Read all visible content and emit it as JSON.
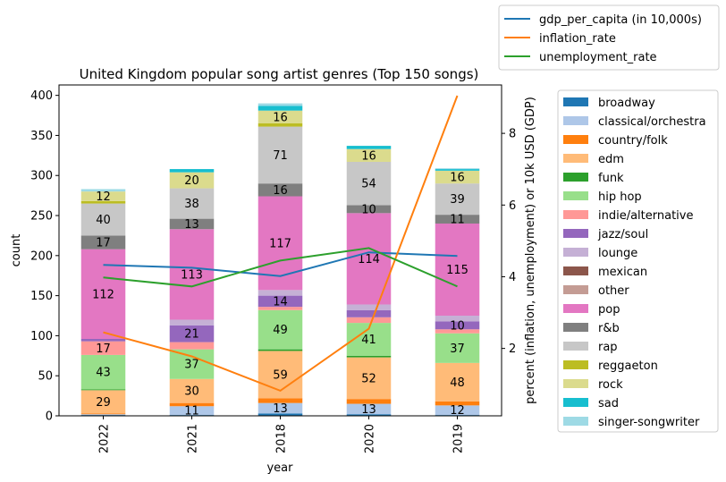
{
  "chart_data": {
    "type": "bar",
    "stacked": true,
    "title": "United Kingdom popular song artist genres (Top 150 songs)",
    "xlabel": "year",
    "ylabel": "count",
    "y2label": "percent (inflation, unemployment) or 10k USD (GDP)",
    "categories": [
      "2022",
      "2021",
      "2018",
      "2020",
      "2019"
    ],
    "ylim": [
      0,
      413
    ],
    "y2lim": [
      0.12,
      9.35
    ],
    "yticks": [
      0,
      50,
      100,
      150,
      200,
      250,
      300,
      350,
      400
    ],
    "y2ticks": [
      2,
      4,
      6,
      8
    ],
    "series": [
      {
        "name": "broadway",
        "color": "#1f77b4",
        "values": [
          1,
          1,
          3,
          2,
          1
        ]
      },
      {
        "name": "classical/orchestra",
        "color": "#aec7e8",
        "values": [
          1,
          11,
          13,
          13,
          12
        ]
      },
      {
        "name": "country/folk",
        "color": "#ff7f0e",
        "values": [
          1,
          4,
          6,
          6,
          5
        ]
      },
      {
        "name": "edm",
        "color": "#ffbb78",
        "values": [
          29,
          30,
          59,
          52,
          48
        ]
      },
      {
        "name": "funk",
        "color": "#2ca02c",
        "values": [
          1,
          0,
          2,
          2,
          0
        ]
      },
      {
        "name": "hip hop",
        "color": "#98df8a",
        "values": [
          43,
          37,
          49,
          41,
          37
        ]
      },
      {
        "name": "indie/alternative",
        "color": "#ff9896",
        "values": [
          17,
          9,
          4,
          7,
          5
        ]
      },
      {
        "name": "jazz/soul",
        "color": "#9467bd",
        "values": [
          3,
          21,
          14,
          9,
          10
        ]
      },
      {
        "name": "lounge",
        "color": "#c5b0d5",
        "values": [
          0,
          7,
          7,
          7,
          7
        ]
      },
      {
        "name": "mexican",
        "color": "#8c564b",
        "values": [
          0,
          0,
          0,
          0,
          0
        ]
      },
      {
        "name": "other",
        "color": "#c49c94",
        "values": [
          0,
          0,
          0,
          0,
          0
        ]
      },
      {
        "name": "pop",
        "color": "#e377c2",
        "values": [
          112,
          113,
          117,
          114,
          115
        ]
      },
      {
        "name": "r&b",
        "color": "#7f7f7f",
        "values": [
          17,
          13,
          16,
          10,
          11
        ]
      },
      {
        "name": "rap",
        "color": "#c7c7c7",
        "values": [
          40,
          38,
          71,
          54,
          39
        ]
      },
      {
        "name": "reggaeton",
        "color": "#bcbd22",
        "values": [
          3,
          0,
          4,
          0,
          0
        ]
      },
      {
        "name": "rock",
        "color": "#dbdb8d",
        "values": [
          12,
          20,
          16,
          16,
          16
        ]
      },
      {
        "name": "sad",
        "color": "#17becf",
        "values": [
          0,
          4,
          6,
          4,
          2
        ]
      },
      {
        "name": "singer-songwriter",
        "color": "#9edae5",
        "values": [
          3,
          0,
          3,
          0,
          1
        ]
      }
    ],
    "lines": [
      {
        "name": "gdp_per_capita (in 10,000s)",
        "color": "#1f77b4",
        "values": [
          4.33,
          4.25,
          4.02,
          4.68,
          4.58
        ]
      },
      {
        "name": "inflation_rate",
        "color": "#ff7f0e",
        "values": [
          2.45,
          1.78,
          0.82,
          2.55,
          9.05
        ]
      },
      {
        "name": "unemployment_rate",
        "color": "#2ca02c",
        "values": [
          3.98,
          3.73,
          4.45,
          4.8,
          3.73
        ]
      }
    ],
    "grid": false,
    "legend_lines_position": "top-right",
    "legend_bars_position": "right"
  }
}
